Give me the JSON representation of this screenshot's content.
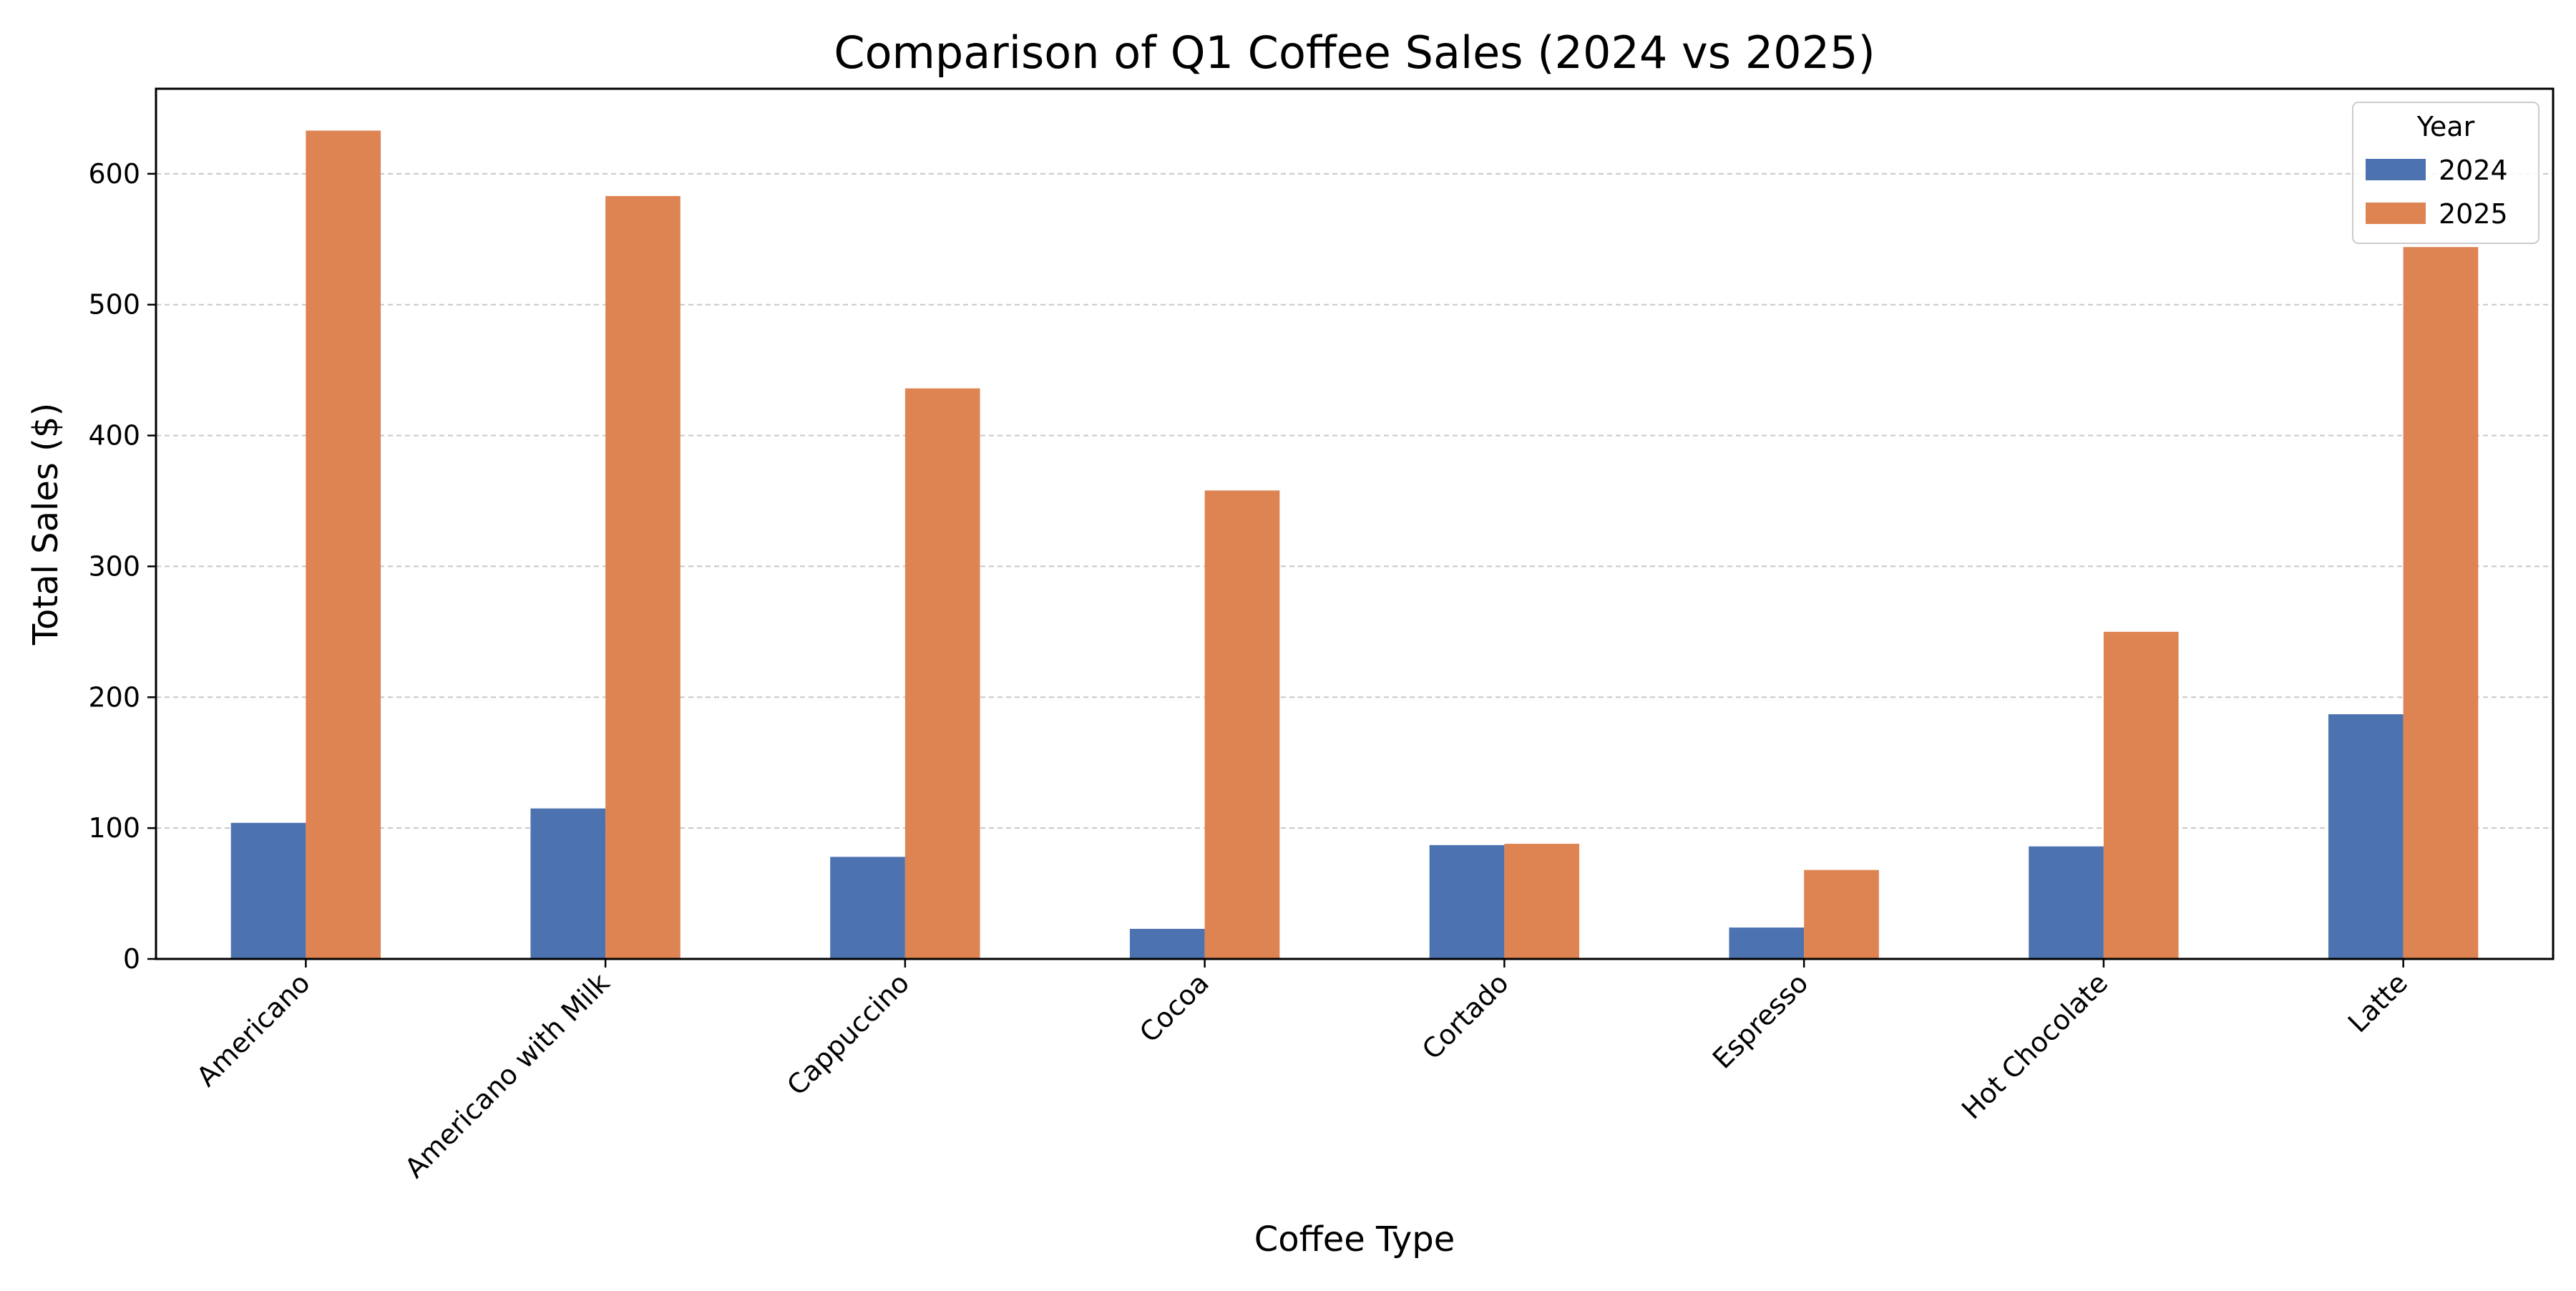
{
  "chart_data": {
    "type": "bar",
    "title": "Comparison of Q1 Coffee Sales (2024 vs 2025)",
    "xlabel": "Coffee Type",
    "ylabel": "Total Sales ($)",
    "categories": [
      "Americano",
      "Americano with Milk",
      "Cappuccino",
      "Cocoa",
      "Cortado",
      "Espresso",
      "Hot Chocolate",
      "Latte"
    ],
    "series": [
      {
        "name": "2024",
        "color": "#4c72b0",
        "values": [
          104,
          115,
          78,
          23,
          87,
          24,
          86,
          187
        ]
      },
      {
        "name": "2025",
        "color": "#dd8452",
        "values": [
          633,
          583,
          436,
          358,
          88,
          68,
          250,
          544
        ]
      }
    ],
    "ylim": [
      0,
      665
    ],
    "yticks": [
      0,
      100,
      200,
      300,
      400,
      500,
      600
    ],
    "grid": "y-dashed",
    "legend": {
      "title": "Year",
      "placement": "top-right"
    }
  }
}
